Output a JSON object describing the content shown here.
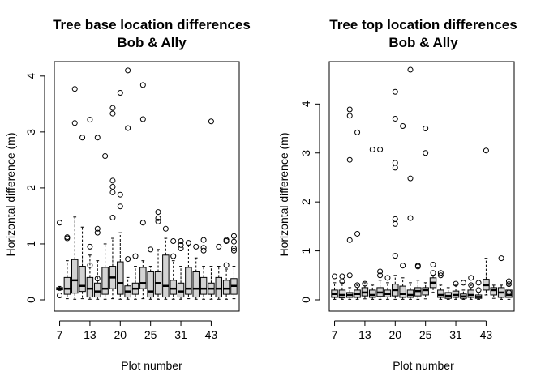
{
  "chart_data": [
    {
      "type": "boxplot",
      "title": [
        "Tree base location differences",
        "Bob & Ally"
      ],
      "xlabel": "Plot number",
      "ylabel": "Horizontal difference (m)",
      "ylim": [
        0,
        4.2
      ],
      "yticks": [
        0,
        1,
        2,
        3,
        4
      ],
      "x_tick_labels": [
        "7",
        "13",
        "20",
        "25",
        "31",
        "43"
      ],
      "x_tick_positions": [
        1,
        5,
        9,
        13,
        17,
        21
      ],
      "box_fill": "#d3d3d3",
      "boxes": [
        {
          "x": 1,
          "q1": 0.18,
          "median": 0.2,
          "q3": 0.22,
          "lower": 0.17,
          "upper": 0.24,
          "outliers": [
            1.38,
            0.08
          ]
        },
        {
          "x": 2,
          "q1": 0.1,
          "median": 0.2,
          "q3": 0.4,
          "lower": 0.02,
          "upper": 0.7,
          "outliers": [
            1.1,
            1.12
          ]
        },
        {
          "x": 3,
          "q1": 0.12,
          "median": 0.35,
          "q3": 0.72,
          "lower": 0.01,
          "upper": 1.48,
          "outliers": [
            3.77,
            3.16
          ]
        },
        {
          "x": 4,
          "q1": 0.15,
          "median": 0.25,
          "q3": 0.6,
          "lower": 0.02,
          "upper": 1.3,
          "outliers": [
            2.9
          ]
        },
        {
          "x": 5,
          "q1": 0.05,
          "median": 0.2,
          "q3": 0.4,
          "lower": 0.01,
          "upper": 0.8,
          "outliers": [
            3.22,
            0.95,
            0.62
          ]
        },
        {
          "x": 6,
          "q1": 0.05,
          "median": 0.15,
          "q3": 0.3,
          "lower": 0.01,
          "upper": 0.7,
          "outliers": [
            2.9,
            1.27,
            1.2,
            0.38
          ]
        },
        {
          "x": 7,
          "q1": 0.1,
          "median": 0.2,
          "q3": 0.58,
          "lower": 0.01,
          "upper": 1.0,
          "outliers": [
            2.57
          ]
        },
        {
          "x": 8,
          "q1": 0.2,
          "median": 0.4,
          "q3": 0.6,
          "lower": 0.02,
          "upper": 1.1,
          "outliers": [
            3.43,
            3.33,
            2.13,
            2.02,
            1.92,
            1.47
          ]
        },
        {
          "x": 9,
          "q1": 0.1,
          "median": 0.3,
          "q3": 0.68,
          "lower": 0.01,
          "upper": 1.2,
          "outliers": [
            3.7,
            1.88,
            1.67
          ]
        },
        {
          "x": 10,
          "q1": 0.05,
          "median": 0.15,
          "q3": 0.25,
          "lower": 0.01,
          "upper": 0.4,
          "outliers": [
            4.1,
            3.07,
            0.73
          ]
        },
        {
          "x": 11,
          "q1": 0.1,
          "median": 0.2,
          "q3": 0.3,
          "lower": 0.01,
          "upper": 0.6,
          "outliers": [
            0.78
          ]
        },
        {
          "x": 12,
          "q1": 0.2,
          "median": 0.3,
          "q3": 0.58,
          "lower": 0.02,
          "upper": 0.7,
          "outliers": [
            3.84,
            3.23,
            1.38
          ]
        },
        {
          "x": 13,
          "q1": 0.05,
          "median": 0.15,
          "q3": 0.5,
          "lower": 0.01,
          "upper": 0.6,
          "outliers": [
            0.9
          ]
        },
        {
          "x": 14,
          "q1": 0.1,
          "median": 0.3,
          "q3": 0.5,
          "lower": 0.01,
          "upper": 0.9,
          "outliers": [
            1.57,
            1.46,
            1.4
          ]
        },
        {
          "x": 15,
          "q1": 0.05,
          "median": 0.25,
          "q3": 0.8,
          "lower": 0.01,
          "upper": 1.1,
          "outliers": [
            1.27
          ]
        },
        {
          "x": 16,
          "q1": 0.1,
          "median": 0.2,
          "q3": 0.35,
          "lower": 0.01,
          "upper": 0.7,
          "outliers": [
            1.05,
            0.78
          ]
        },
        {
          "x": 17,
          "q1": 0.05,
          "median": 0.15,
          "q3": 0.3,
          "lower": 0.01,
          "upper": 0.6,
          "outliers": [
            1.05,
            0.98,
            0.92
          ]
        },
        {
          "x": 18,
          "q1": 0.1,
          "median": 0.2,
          "q3": 0.58,
          "lower": 0.02,
          "upper": 0.98,
          "outliers": [
            1.02
          ]
        },
        {
          "x": 19,
          "q1": 0.05,
          "median": 0.2,
          "q3": 0.5,
          "lower": 0.01,
          "upper": 0.75,
          "outliers": [
            0.95
          ]
        },
        {
          "x": 20,
          "q1": 0.1,
          "median": 0.2,
          "q3": 0.4,
          "lower": 0.01,
          "upper": 0.6,
          "outliers": [
            1.07,
            0.93,
            0.88
          ]
        },
        {
          "x": 21,
          "q1": 0.1,
          "median": 0.2,
          "q3": 0.3,
          "lower": 0.01,
          "upper": 0.6,
          "outliers": [
            3.19
          ]
        },
        {
          "x": 22,
          "q1": 0.05,
          "median": 0.2,
          "q3": 0.4,
          "lower": 0.01,
          "upper": 0.6,
          "outliers": [
            0.95
          ]
        },
        {
          "x": 23,
          "q1": 0.1,
          "median": 0.2,
          "q3": 0.35,
          "lower": 0.01,
          "upper": 0.55,
          "outliers": [
            1.07,
            1.05,
            0.62
          ]
        },
        {
          "x": 24,
          "q1": 0.1,
          "median": 0.25,
          "q3": 0.38,
          "lower": 0.02,
          "upper": 0.6,
          "outliers": [
            1.14,
            1.04,
            0.92,
            0.88
          ]
        }
      ]
    },
    {
      "type": "boxplot",
      "title": [
        "Tree top location differences",
        "Bob & Ally"
      ],
      "xlabel": "Plot number",
      "ylabel": "Horizontal difference (m)",
      "ylim": [
        0,
        4.8
      ],
      "yticks": [
        0,
        1,
        2,
        3,
        4
      ],
      "x_tick_labels": [
        "7",
        "13",
        "20",
        "25",
        "31",
        "43"
      ],
      "x_tick_positions": [
        1,
        5,
        9,
        13,
        17,
        21
      ],
      "box_fill": "#d3d3d3",
      "boxes": [
        {
          "x": 1,
          "q1": 0.05,
          "median": 0.12,
          "q3": 0.2,
          "lower": 0.01,
          "upper": 0.35,
          "outliers": [
            0.48
          ]
        },
        {
          "x": 2,
          "q1": 0.04,
          "median": 0.1,
          "q3": 0.2,
          "lower": 0.01,
          "upper": 0.35,
          "outliers": [
            0.48,
            0.38
          ]
        },
        {
          "x": 3,
          "q1": 0.05,
          "median": 0.1,
          "q3": 0.15,
          "lower": 0.01,
          "upper": 0.25,
          "outliers": [
            3.89,
            3.76,
            2.86,
            1.22,
            0.5
          ]
        },
        {
          "x": 4,
          "q1": 0.05,
          "median": 0.12,
          "q3": 0.2,
          "lower": 0.01,
          "upper": 0.3,
          "outliers": [
            3.42,
            1.35,
            0.3
          ]
        },
        {
          "x": 5,
          "q1": 0.08,
          "median": 0.15,
          "q3": 0.25,
          "lower": 0.02,
          "upper": 0.35,
          "outliers": [
            0.33
          ]
        },
        {
          "x": 6,
          "q1": 0.05,
          "median": 0.1,
          "q3": 0.2,
          "lower": 0.01,
          "upper": 0.3,
          "outliers": [
            3.07
          ]
        },
        {
          "x": 7,
          "q1": 0.07,
          "median": 0.15,
          "q3": 0.25,
          "lower": 0.01,
          "upper": 0.4,
          "outliers": [
            3.07,
            0.58,
            0.5
          ]
        },
        {
          "x": 8,
          "q1": 0.06,
          "median": 0.12,
          "q3": 0.2,
          "lower": 0.01,
          "upper": 0.35,
          "outliers": [
            0.45
          ]
        },
        {
          "x": 9,
          "q1": 0.08,
          "median": 0.2,
          "q3": 0.32,
          "lower": 0.01,
          "upper": 0.5,
          "outliers": [
            4.25,
            3.7,
            2.8,
            2.7,
            1.65,
            1.55,
            0.9
          ]
        },
        {
          "x": 10,
          "q1": 0.05,
          "median": 0.12,
          "q3": 0.28,
          "lower": 0.01,
          "upper": 0.45,
          "outliers": [
            3.55,
            0.7
          ]
        },
        {
          "x": 11,
          "q1": 0.05,
          "median": 0.1,
          "q3": 0.2,
          "lower": 0.01,
          "upper": 0.35,
          "outliers": [
            4.7,
            2.48,
            1.67
          ]
        },
        {
          "x": 12,
          "q1": 0.08,
          "median": 0.18,
          "q3": 0.25,
          "lower": 0.01,
          "upper": 0.4,
          "outliers": [
            0.7,
            0.68
          ]
        },
        {
          "x": 13,
          "q1": 0.1,
          "median": 0.2,
          "q3": 0.25,
          "lower": 0.02,
          "upper": 0.35,
          "outliers": [
            3.5,
            3.0
          ]
        },
        {
          "x": 14,
          "q1": 0.25,
          "median": 0.35,
          "q3": 0.45,
          "lower": 0.15,
          "upper": 0.5,
          "outliers": [
            0.72,
            0.55
          ]
        },
        {
          "x": 15,
          "q1": 0.05,
          "median": 0.1,
          "q3": 0.2,
          "lower": 0.01,
          "upper": 0.3,
          "outliers": [
            0.55,
            0.5
          ]
        },
        {
          "x": 16,
          "q1": 0.03,
          "median": 0.08,
          "q3": 0.15,
          "lower": 0.01,
          "upper": 0.25,
          "outliers": []
        },
        {
          "x": 17,
          "q1": 0.05,
          "median": 0.1,
          "q3": 0.18,
          "lower": 0.01,
          "upper": 0.3,
          "outliers": [
            0.33
          ]
        },
        {
          "x": 18,
          "q1": 0.03,
          "median": 0.07,
          "q3": 0.12,
          "lower": 0.01,
          "upper": 0.2,
          "outliers": [
            0.35
          ]
        },
        {
          "x": 19,
          "q1": 0.05,
          "median": 0.1,
          "q3": 0.2,
          "lower": 0.01,
          "upper": 0.3,
          "outliers": [
            0.45,
            0.3
          ]
        },
        {
          "x": 20,
          "q1": 0.03,
          "median": 0.06,
          "q3": 0.1,
          "lower": 0.01,
          "upper": 0.15,
          "outliers": [
            0.35,
            0.2
          ]
        },
        {
          "x": 21,
          "q1": 0.2,
          "median": 0.3,
          "q3": 0.42,
          "lower": 0.1,
          "upper": 0.85,
          "outliers": [
            3.05
          ]
        },
        {
          "x": 22,
          "q1": 0.1,
          "median": 0.2,
          "q3": 0.25,
          "lower": 0.03,
          "upper": 0.3,
          "outliers": []
        },
        {
          "x": 23,
          "q1": 0.05,
          "median": 0.15,
          "q3": 0.25,
          "lower": 0.01,
          "upper": 0.3,
          "outliers": [
            0.85
          ]
        },
        {
          "x": 24,
          "q1": 0.05,
          "median": 0.1,
          "q3": 0.2,
          "lower": 0.01,
          "upper": 0.3,
          "outliers": [
            0.38,
            0.32,
            0.15
          ]
        }
      ]
    }
  ]
}
